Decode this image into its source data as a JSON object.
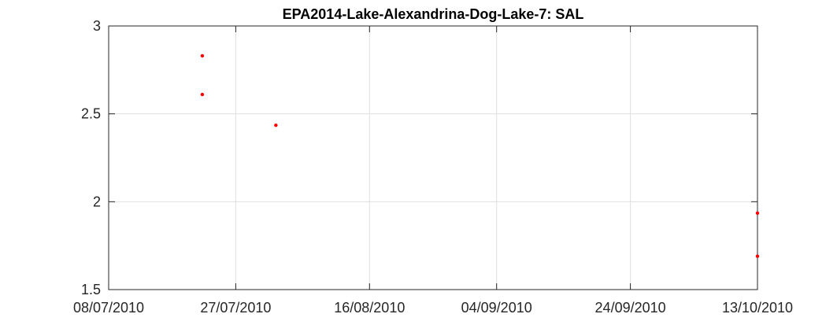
{
  "chart_data": {
    "type": "scatter",
    "title": "EPA2014-Lake-Alexandrina-Dog-Lake-7: SAL",
    "xlabel": "",
    "ylabel": "",
    "x_axis_type": "date",
    "xlim": [
      "2010-07-08",
      "2010-10-13"
    ],
    "ylim": [
      1.5,
      3
    ],
    "x_ticks": [
      "2010-07-08",
      "2010-07-27",
      "2010-08-16",
      "2010-09-04",
      "2010-09-24",
      "2010-10-13"
    ],
    "x_tick_labels": [
      "08/07/2010",
      "27/07/2010",
      "16/08/2010",
      "04/09/2010",
      "24/09/2010",
      "13/10/2010"
    ],
    "y_ticks": [
      1.5,
      2,
      2.5,
      3
    ],
    "y_tick_labels": [
      "1.5",
      "2",
      "2.5",
      "3"
    ],
    "grid": true,
    "legend": "none",
    "marker_color": "#ff0000",
    "series": [
      {
        "x": [
          "2010-07-22",
          "2010-07-22",
          "2010-08-02",
          "2010-10-13",
          "2010-10-13"
        ],
        "y": [
          2.83,
          2.61,
          2.435,
          1.935,
          1.69
        ]
      }
    ]
  }
}
